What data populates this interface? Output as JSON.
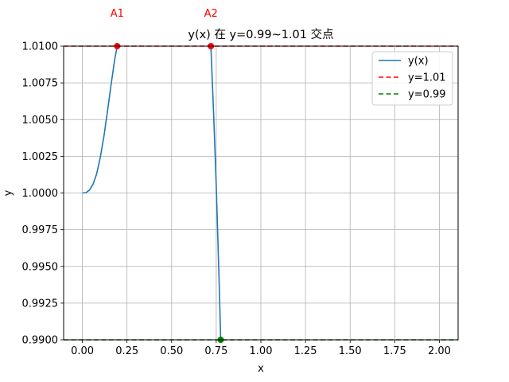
{
  "chart_data": {
    "type": "line",
    "title": "y(x) 在 y=0.99~1.01 交点",
    "xlabel": "x",
    "ylabel": "y",
    "xlim": [
      -0.105,
      2.105
    ],
    "ylim": [
      0.99,
      1.01
    ],
    "xticks": [
      0.0,
      0.25,
      0.5,
      0.75,
      1.0,
      1.25,
      1.5,
      1.75,
      2.0
    ],
    "xtick_labels": [
      "0.00",
      "0.25",
      "0.50",
      "0.75",
      "1.00",
      "1.25",
      "1.50",
      "1.75",
      "2.00"
    ],
    "yticks": [
      0.99,
      0.9925,
      0.995,
      0.9975,
      1.0,
      1.0025,
      1.005,
      1.0075,
      1.01
    ],
    "ytick_labels": [
      "0.9900",
      "0.9925",
      "0.9950",
      "0.9975",
      "1.0000",
      "1.0025",
      "1.0050",
      "1.0075",
      "1.0100"
    ],
    "grid": true,
    "legend_position": "top-right",
    "series": [
      {
        "name": "y(x)",
        "color": "#1f77b4",
        "style": "solid",
        "segments": [
          {
            "x": [
              0.0,
              0.02,
              0.04,
              0.06,
              0.08,
              0.1,
              0.12,
              0.14,
              0.16,
              0.18,
              0.195
            ],
            "y": [
              1.0,
              1.00002,
              1.0002,
              1.0006,
              1.0013,
              1.0024,
              1.0038,
              1.0055,
              1.0073,
              1.009,
              1.01
            ]
          },
          {
            "x": [
              0.72,
              0.735,
              0.75,
              0.765,
              0.775
            ],
            "y": [
              1.01,
              1.0055,
              1.0005,
              0.9945,
              0.99
            ]
          }
        ]
      },
      {
        "name": "y=1.01",
        "color": "#ff0000",
        "style": "dashed",
        "x": [
          -0.105,
          2.105
        ],
        "y": [
          1.01,
          1.01
        ]
      },
      {
        "name": "y=0.99",
        "color": "#008000",
        "style": "dashed",
        "x": [
          -0.105,
          2.105
        ],
        "y": [
          0.99,
          0.99
        ]
      }
    ],
    "points": [
      {
        "label": "A1",
        "x": 0.195,
        "y": 1.01,
        "color": "#ff0000"
      },
      {
        "label": "A2",
        "x": 0.72,
        "y": 1.01,
        "color": "#ff0000"
      },
      {
        "label": "",
        "x": 0.775,
        "y": 0.99,
        "color": "#008000"
      }
    ]
  }
}
